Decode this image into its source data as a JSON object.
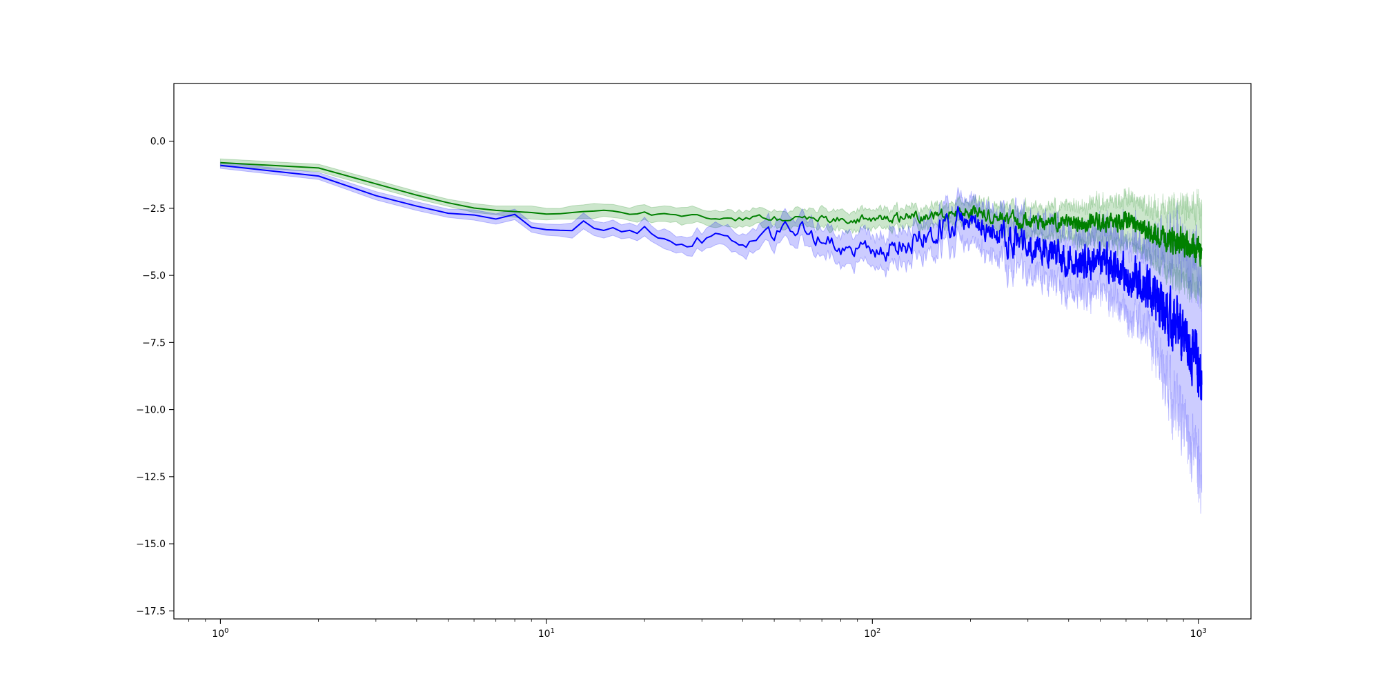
{
  "chart_data": {
    "type": "line",
    "title": "",
    "xlabel": "",
    "ylabel": "",
    "x_scale": "log",
    "xlim": [
      0.72,
      1450
    ],
    "ylim": [
      -17.8,
      2.15
    ],
    "grid": false,
    "legend": "none",
    "x_ticks": [
      {
        "value": 1,
        "base": "10",
        "exp": "0"
      },
      {
        "value": 10,
        "base": "10",
        "exp": "1"
      },
      {
        "value": 100,
        "base": "10",
        "exp": "2"
      },
      {
        "value": 1000,
        "base": "10",
        "exp": "3"
      }
    ],
    "y_ticks": [
      {
        "value": 0.0,
        "label": "0.0"
      },
      {
        "value": -2.5,
        "label": "−2.5"
      },
      {
        "value": -5.0,
        "label": "−5.0"
      },
      {
        "value": -7.5,
        "label": "−7.5"
      },
      {
        "value": -10.0,
        "label": "−10.0"
      },
      {
        "value": -12.5,
        "label": "−12.5"
      },
      {
        "value": -15.0,
        "label": "−15.0"
      },
      {
        "value": -17.5,
        "label": "−17.5"
      }
    ],
    "x_range": [
      1,
      1024
    ],
    "series": [
      {
        "color": "#008000",
        "band_color": "#008000",
        "band_opacity": 0.2,
        "anchors": [
          [
            1,
            -0.8
          ],
          [
            2,
            -1.0
          ],
          [
            3,
            -1.6
          ],
          [
            4,
            -2.0
          ],
          [
            5,
            -2.3
          ],
          [
            7,
            -2.6
          ],
          [
            10,
            -2.7
          ],
          [
            15,
            -2.6
          ],
          [
            20,
            -2.7
          ],
          [
            30,
            -2.9
          ],
          [
            50,
            -2.9
          ],
          [
            100,
            -2.9
          ],
          [
            150,
            -2.8
          ],
          [
            200,
            -2.6
          ],
          [
            250,
            -2.9
          ],
          [
            300,
            -3.0
          ],
          [
            400,
            -3.1
          ],
          [
            500,
            -3.0
          ],
          [
            600,
            -3.0
          ],
          [
            700,
            -3.4
          ],
          [
            800,
            -3.7
          ],
          [
            900,
            -3.8
          ],
          [
            1024,
            -4.1
          ]
        ],
        "noise": [
          [
            1,
            0.0
          ],
          [
            10,
            0.05
          ],
          [
            50,
            0.1
          ],
          [
            150,
            0.15
          ],
          [
            300,
            0.2
          ],
          [
            700,
            0.25
          ],
          [
            1024,
            0.35
          ]
        ],
        "band_width": [
          [
            1,
            0.25
          ],
          [
            5,
            0.3
          ],
          [
            10,
            0.45
          ],
          [
            30,
            0.6
          ],
          [
            100,
            0.7
          ],
          [
            200,
            0.8
          ],
          [
            400,
            1.2
          ],
          [
            700,
            1.8
          ],
          [
            900,
            2.8
          ],
          [
            1024,
            3.3
          ]
        ]
      },
      {
        "color": "#0000ff",
        "band_color": "#0000ff",
        "band_opacity": 0.2,
        "anchors": [
          [
            1,
            -0.9
          ],
          [
            2,
            -1.3
          ],
          [
            3,
            -2.1
          ],
          [
            4,
            -2.4
          ],
          [
            5,
            -2.7
          ],
          [
            6,
            -2.7
          ],
          [
            7,
            -3.0
          ],
          [
            8,
            -2.9
          ],
          [
            10,
            -3.4
          ],
          [
            13,
            -3.0
          ],
          [
            16,
            -3.3
          ],
          [
            20,
            -3.3
          ],
          [
            27,
            -3.8
          ],
          [
            33,
            -3.5
          ],
          [
            40,
            -3.7
          ],
          [
            60,
            -3.3
          ],
          [
            80,
            -4.0
          ],
          [
            100,
            -4.2
          ],
          [
            150,
            -3.5
          ],
          [
            200,
            -2.7
          ],
          [
            250,
            -3.5
          ],
          [
            300,
            -4.0
          ],
          [
            400,
            -4.3
          ],
          [
            500,
            -4.5
          ],
          [
            600,
            -4.9
          ],
          [
            700,
            -5.7
          ],
          [
            800,
            -6.5
          ],
          [
            900,
            -7.2
          ],
          [
            1000,
            -8.3
          ],
          [
            1024,
            -9.0
          ]
        ],
        "noise": [
          [
            1,
            0.0
          ],
          [
            10,
            0.15
          ],
          [
            30,
            0.2
          ],
          [
            80,
            0.25
          ],
          [
            150,
            0.3
          ],
          [
            300,
            0.45
          ],
          [
            600,
            0.5
          ],
          [
            800,
            0.65
          ],
          [
            1024,
            0.75
          ]
        ],
        "band_width": [
          [
            1,
            0.2
          ],
          [
            5,
            0.3
          ],
          [
            10,
            0.45
          ],
          [
            30,
            0.7
          ],
          [
            80,
            1.1
          ],
          [
            150,
            1.3
          ],
          [
            300,
            2.0
          ],
          [
            500,
            2.3
          ],
          [
            700,
            3.2
          ],
          [
            850,
            6.0
          ],
          [
            1024,
            7.5
          ]
        ]
      }
    ]
  }
}
